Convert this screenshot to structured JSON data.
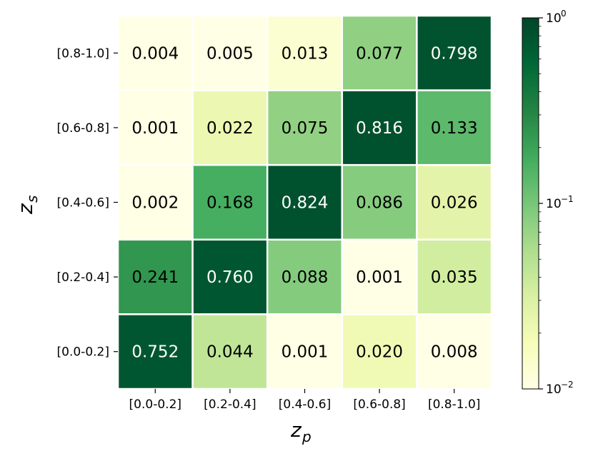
{
  "chart_data": {
    "type": "heatmap",
    "title": "",
    "xlabel": {
      "base": "z",
      "sub": "p"
    },
    "ylabel": {
      "base": "z",
      "sub": "s"
    },
    "x_categories": [
      "[0.0-0.2]",
      "[0.2-0.4]",
      "[0.4-0.6]",
      "[0.6-0.8]",
      "[0.8-1.0]"
    ],
    "y_categories_top_to_bottom": [
      "[0.8-1.0]",
      "[0.6-0.8]",
      "[0.4-0.6]",
      "[0.2-0.4]",
      "[0.0-0.2]"
    ],
    "values": [
      [
        "0.004",
        "0.005",
        "0.013",
        "0.077",
        "0.798"
      ],
      [
        "0.001",
        "0.022",
        "0.075",
        "0.816",
        "0.133"
      ],
      [
        "0.002",
        "0.168",
        "0.824",
        "0.086",
        "0.026"
      ],
      [
        "0.241",
        "0.760",
        "0.088",
        "0.001",
        "0.035"
      ],
      [
        "0.752",
        "0.044",
        "0.001",
        "0.020",
        "0.008"
      ]
    ],
    "colorscale": {
      "name": "Greens-Yellow",
      "scale": "log",
      "vmin": 0.01,
      "vmax": 1,
      "ticks": [
        {
          "base": "10",
          "exp": "0",
          "value": 1
        },
        {
          "base": "10",
          "exp": "−1",
          "value": 0.1
        },
        {
          "base": "10",
          "exp": "−2",
          "value": 0.01
        }
      ]
    },
    "grid": true
  }
}
